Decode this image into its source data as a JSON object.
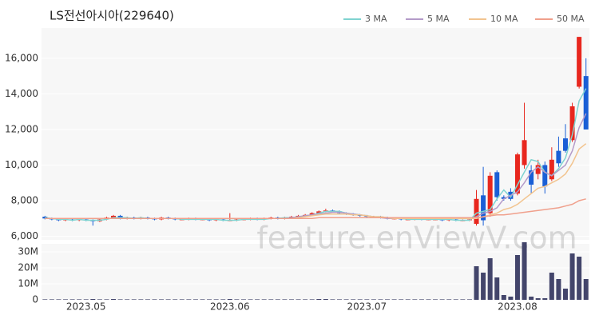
{
  "chart_data": {
    "type": "candlestick",
    "title": "LS전선아시아(229640)",
    "watermark": "feature.enViewV.com",
    "categories": [
      null,
      null,
      null,
      null,
      null,
      null,
      "2023.05",
      null,
      null,
      null,
      null,
      null,
      null,
      null,
      null,
      null,
      null,
      null,
      null,
      null,
      null,
      null,
      null,
      null,
      null,
      null,
      null,
      "2023.06",
      null,
      null,
      null,
      null,
      null,
      null,
      null,
      null,
      null,
      null,
      null,
      null,
      null,
      null,
      null,
      null,
      null,
      null,
      null,
      "2023.07",
      null,
      null,
      null,
      null,
      null,
      null,
      null,
      null,
      null,
      null,
      null,
      null,
      null,
      null,
      null,
      null,
      null,
      null,
      null,
      null,
      null,
      "2023.08",
      null,
      null,
      null,
      null,
      null,
      null,
      null,
      null,
      null,
      null
    ],
    "open": [
      7100,
      7000,
      6950,
      6900,
      6950,
      6900,
      6950,
      6900,
      6850,
      6950,
      7050,
      7150,
      7000,
      7050,
      7000,
      7050,
      7000,
      6950,
      7050,
      7000,
      6950,
      6950,
      7000,
      6950,
      6950,
      6900,
      6950,
      6900,
      6900,
      6950,
      6950,
      7000,
      6950,
      7000,
      7050,
      7000,
      7050,
      7100,
      7150,
      7200,
      7300,
      7400,
      7450,
      7400,
      7300,
      7250,
      7200,
      7150,
      7100,
      7100,
      7050,
      7000,
      7000,
      6950,
      6950,
      7000,
      6950,
      6950,
      6950,
      6900,
      6950,
      6900,
      6900,
      6700,
      8300,
      7300,
      9600,
      8200,
      8500,
      8400,
      10000,
      9700,
      9500,
      10000,
      9200,
      10800,
      11500,
      11400,
      14400,
      15000
    ],
    "high": [
      7150,
      7050,
      7000,
      7000,
      7000,
      7000,
      7000,
      6950,
      7000,
      7100,
      7200,
      7200,
      7100,
      7100,
      7100,
      7100,
      7050,
      7100,
      7100,
      7050,
      7000,
      7050,
      7050,
      7000,
      7000,
      7000,
      7000,
      7300,
      7000,
      7000,
      7050,
      7050,
      7050,
      7100,
      7100,
      7100,
      7150,
      7200,
      7250,
      7350,
      7450,
      7550,
      7500,
      7450,
      7350,
      7300,
      7250,
      7200,
      7150,
      7150,
      7100,
      7050,
      7050,
      7000,
      7050,
      7050,
      7000,
      7000,
      7000,
      7000,
      7000,
      6950,
      7000,
      8600,
      9900,
      9600,
      9700,
      8300,
      8700,
      10700,
      13500,
      10000,
      10300,
      10200,
      11000,
      11600,
      12300,
      13500,
      17200,
      16000
    ],
    "low": [
      6950,
      6900,
      6850,
      6850,
      6850,
      6850,
      6850,
      6600,
      6800,
      6900,
      7000,
      6950,
      6950,
      6950,
      6950,
      6950,
      6900,
      6900,
      6950,
      6900,
      6900,
      6900,
      6900,
      6900,
      6850,
      6850,
      6850,
      6850,
      6850,
      6900,
      6900,
      6900,
      6900,
      6950,
      6950,
      6950,
      7000,
      7050,
      7100,
      7150,
      7250,
      7350,
      7350,
      7250,
      7200,
      7150,
      7100,
      7050,
      7050,
      7000,
      6950,
      6950,
      6900,
      6900,
      6900,
      6900,
      6900,
      6900,
      6850,
      6850,
      6850,
      6850,
      6850,
      6600,
      6600,
      7100,
      8000,
      8000,
      8000,
      8300,
      9800,
      8400,
      9200,
      8400,
      9100,
      9900,
      10700,
      11300,
      14300,
      12000
    ],
    "close": [
      7000,
      6950,
      6900,
      6950,
      6900,
      6950,
      6900,
      6850,
      6950,
      7050,
      7150,
      7000,
      7050,
      7000,
      7050,
      7000,
      6950,
      7050,
      7000,
      6950,
      6950,
      7000,
      6950,
      6950,
      6900,
      6950,
      6900,
      6900,
      6950,
      6950,
      7000,
      6950,
      7000,
      7050,
      7000,
      7050,
      7100,
      7150,
      7200,
      7300,
      7400,
      7450,
      7400,
      7300,
      7250,
      7200,
      7150,
      7100,
      7100,
      7050,
      7000,
      7000,
      6950,
      6950,
      7000,
      6950,
      6950,
      6950,
      6900,
      6950,
      6900,
      6900,
      6950,
      8100,
      6900,
      9400,
      8200,
      8100,
      8100,
      10600,
      11400,
      8900,
      10000,
      8800,
      10300,
      10100,
      10800,
      13300,
      17200,
      12000
    ],
    "up_color": "#e8271e",
    "down_color": "#1a5fd6",
    "series": [
      {
        "name": "3 MA",
        "color": "#7fd3d0",
        "values": [
          7050,
          7000,
          6950,
          6950,
          6900,
          6950,
          6900,
          6900,
          6900,
          6950,
          7050,
          7050,
          7050,
          7000,
          7050,
          7000,
          7000,
          7000,
          7000,
          7000,
          6950,
          6950,
          6950,
          6950,
          6950,
          6950,
          6900,
          6900,
          6900,
          6950,
          6950,
          6950,
          6950,
          7000,
          7000,
          7050,
          7050,
          7100,
          7150,
          7200,
          7300,
          7400,
          7400,
          7400,
          7300,
          7250,
          7200,
          7150,
          7100,
          7100,
          7050,
          7000,
          7000,
          6950,
          6950,
          6950,
          6950,
          6950,
          6950,
          6950,
          6900,
          6900,
          6900,
          7300,
          7400,
          7500,
          8100,
          8600,
          8200,
          8900,
          9600,
          10300,
          10200,
          9600,
          9400,
          9800,
          10400,
          11700,
          13600,
          14300
        ]
      },
      {
        "name": "5 MA",
        "color": "#b49bc9",
        "values": [
          7000,
          7000,
          7000,
          7000,
          7000,
          7000,
          7000,
          7000,
          7000,
          7000,
          7000,
          7000,
          7000,
          7000,
          7000,
          7000,
          7000,
          7000,
          7000,
          7000,
          7000,
          7000,
          7000,
          7000,
          7000,
          7000,
          7000,
          7000,
          7000,
          7000,
          7000,
          7000,
          7000,
          7000,
          7000,
          7000,
          7050,
          7100,
          7150,
          7200,
          7250,
          7300,
          7350,
          7350,
          7300,
          7250,
          7200,
          7150,
          7100,
          7050,
          7000,
          7000,
          7000,
          7000,
          7000,
          7000,
          7000,
          7000,
          7000,
          7000,
          7000,
          7000,
          7000,
          7100,
          7300,
          7400,
          7600,
          8100,
          8300,
          8500,
          9000,
          9600,
          9900,
          9600,
          9400,
          9700,
          10000,
          10800,
          12100,
          12900
        ]
      },
      {
        "name": "10 MA",
        "color": "#f2c48f",
        "values": [
          7000,
          7000,
          7000,
          7000,
          7000,
          7000,
          7000,
          7000,
          7000,
          7000,
          7000,
          7000,
          7000,
          7000,
          7000,
          7000,
          7000,
          7000,
          7000,
          7000,
          7000,
          7000,
          7000,
          7000,
          7000,
          7000,
          7000,
          7000,
          7000,
          7000,
          7000,
          7000,
          7000,
          7000,
          7000,
          7000,
          7000,
          7050,
          7100,
          7150,
          7200,
          7250,
          7250,
          7250,
          7250,
          7200,
          7200,
          7150,
          7100,
          7100,
          7050,
          7000,
          7000,
          7000,
          7000,
          7000,
          7000,
          7000,
          7000,
          7000,
          7000,
          7000,
          7000,
          7000,
          7100,
          7200,
          7300,
          7500,
          7600,
          7800,
          8100,
          8400,
          8700,
          8800,
          9000,
          9200,
          9500,
          10100,
          10900,
          11200
        ]
      },
      {
        "name": "50 MA",
        "color": "#f0a08c",
        "values": [
          7000,
          7000,
          7000,
          7000,
          7000,
          7000,
          7000,
          7000,
          7000,
          7000,
          7000,
          7000,
          7000,
          7000,
          7000,
          7000,
          7000,
          7000,
          7000,
          7000,
          7000,
          7000,
          7000,
          7000,
          7000,
          7000,
          7000,
          7000,
          7000,
          7000,
          7000,
          7000,
          7000,
          7000,
          7000,
          7000,
          7000,
          7000,
          7000,
          7000,
          7050,
          7050,
          7050,
          7050,
          7050,
          7050,
          7050,
          7050,
          7050,
          7050,
          7050,
          7050,
          7050,
          7050,
          7050,
          7050,
          7050,
          7050,
          7050,
          7050,
          7050,
          7050,
          7050,
          7050,
          7100,
          7150,
          7200,
          7200,
          7250,
          7300,
          7350,
          7400,
          7450,
          7500,
          7550,
          7600,
          7700,
          7800,
          8000,
          8100
        ]
      }
    ],
    "ylim": [
      5800,
      17700
    ],
    "yticks": [
      {
        "value": 6000,
        "label": "6,000"
      },
      {
        "value": 8000,
        "label": "8,000"
      },
      {
        "value": 10000,
        "label": "10,000"
      },
      {
        "value": 12000,
        "label": "12,000"
      },
      {
        "value": 14000,
        "label": "14,000"
      },
      {
        "value": 16000,
        "label": "16,000"
      }
    ],
    "grid": true,
    "volume": {
      "color": "#43456b",
      "values": [
        300000,
        300000,
        300000,
        300000,
        300000,
        300000,
        300000,
        500000,
        300000,
        300000,
        500000,
        300000,
        300000,
        300000,
        300000,
        300000,
        300000,
        300000,
        300000,
        300000,
        300000,
        300000,
        300000,
        300000,
        300000,
        300000,
        300000,
        500000,
        300000,
        300000,
        300000,
        300000,
        300000,
        300000,
        300000,
        300000,
        300000,
        300000,
        300000,
        300000,
        500000,
        500000,
        300000,
        300000,
        300000,
        300000,
        300000,
        300000,
        300000,
        300000,
        300000,
        300000,
        300000,
        300000,
        300000,
        300000,
        300000,
        300000,
        300000,
        300000,
        300000,
        300000,
        300000,
        21000000,
        17000000,
        26000000,
        14000000,
        3000000,
        2000000,
        28000000,
        36000000,
        2000000,
        1000000,
        1000000,
        17000000,
        13000000,
        7000000,
        29000000,
        27000000,
        13000000
      ],
      "ylim": [
        0,
        35000000
      ],
      "yticks": [
        {
          "value": 0,
          "label": "0"
        },
        {
          "value": 10000000,
          "label": "10M"
        },
        {
          "value": 20000000,
          "label": "20M"
        },
        {
          "value": 30000000,
          "label": "30M"
        }
      ]
    }
  }
}
